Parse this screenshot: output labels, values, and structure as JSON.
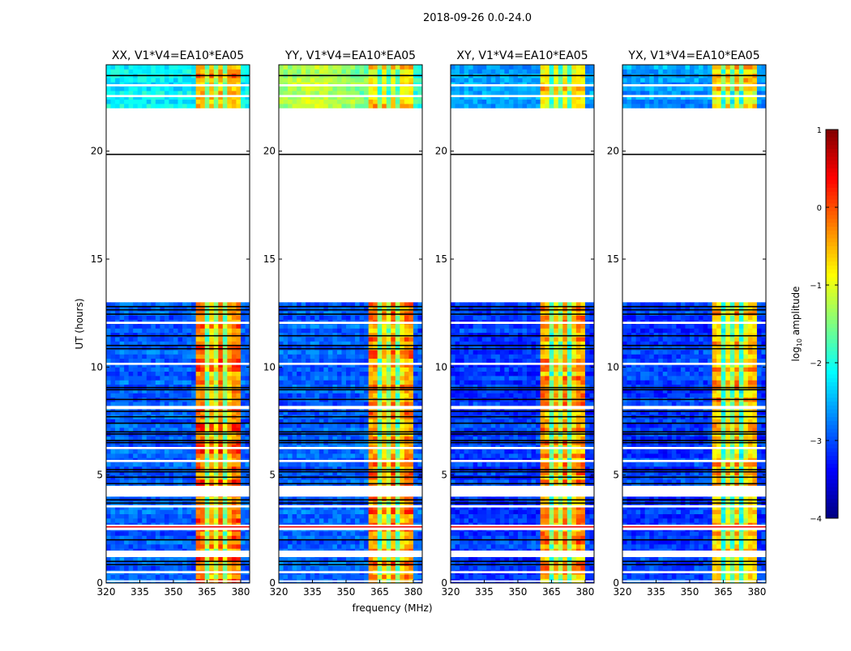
{
  "chart_data": {
    "type": "heatmap",
    "title": "2018-09-26 0.0-24.0",
    "xlabel": "frequency (MHz)",
    "ylabel": "UT (hours)",
    "xlim": [
      320,
      384
    ],
    "ylim": [
      0,
      24
    ],
    "xticks": [
      "320",
      "335",
      "350",
      "365",
      "380"
    ],
    "xtick_values": [
      320,
      335,
      350,
      365,
      380
    ],
    "yticks": [
      "0",
      "5",
      "10",
      "15",
      "20"
    ],
    "ytick_values": [
      0,
      5,
      10,
      15,
      20
    ],
    "colorbar": {
      "label_main": "log",
      "label_sub": "10",
      "label_rest": " amplitude",
      "colormap": "jet",
      "range": [
        -4,
        1
      ],
      "ticks": [
        "1",
        "0",
        "−1",
        "−2",
        "−3",
        "−4"
      ],
      "tick_values": [
        1,
        0,
        -1,
        -2,
        -3,
        -4
      ]
    },
    "observed_hours": [
      [
        0,
        13
      ],
      [
        22,
        24
      ]
    ],
    "white_gaps_hours": [
      [
        0.05,
        0.12
      ],
      [
        0.45,
        0.55
      ],
      [
        1.2,
        1.5
      ],
      [
        2.45,
        2.7
      ],
      [
        3.5,
        3.6
      ],
      [
        4.0,
        4.5
      ],
      [
        5.6,
        5.7
      ],
      [
        6.2,
        6.3
      ],
      [
        8.05,
        8.2
      ],
      [
        10.1,
        10.2
      ],
      [
        12.0,
        12.1
      ],
      [
        22.5,
        22.6
      ],
      [
        23.0,
        23.1
      ]
    ],
    "black_lines_hours": [
      0.85,
      1.0,
      2.0,
      3.7,
      3.85,
      4.6,
      4.9,
      5.15,
      5.25,
      6.5,
      6.6,
      6.9,
      7.0,
      7.4,
      7.7,
      7.95,
      8.5,
      8.95,
      9.05,
      10.85,
      11.0,
      11.45,
      12.45,
      12.65,
      12.8,
      19.85,
      23.5
    ],
    "red_line_hours": 2.6,
    "bright_band_mhz": [
      360,
      380
    ],
    "band_dips_mhz": [
      365,
      369.5,
      373.5,
      378
    ],
    "panels": [
      {
        "title": "XX, V1*V4=EA10*EA05",
        "background_log_amp": -2.9,
        "band_log_amp": -0.6,
        "top_block_log_amp": -2.2
      },
      {
        "title": "YY, V1*V4=EA10*EA05",
        "background_log_amp": -2.9,
        "band_log_amp": -0.8,
        "top_block_log_amp": -1.4
      },
      {
        "title": "XY, V1*V4=EA10*EA05",
        "background_log_amp": -3.1,
        "band_log_amp": -0.9,
        "top_block_log_amp": -2.6
      },
      {
        "title": "YX, V1*V4=EA10*EA05",
        "background_log_amp": -3.1,
        "band_log_amp": -1.0,
        "top_block_log_amp": -2.6
      }
    ]
  }
}
